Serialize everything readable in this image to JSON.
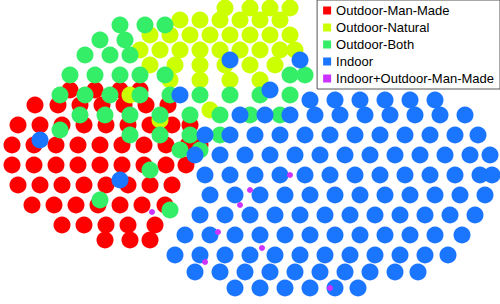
{
  "chart_data": {
    "type": "scatter",
    "tick_labels": false,
    "grid": false,
    "legend": "upper right",
    "marker": "circle",
    "series": [
      {
        "name": "Outdoor-Man-Made",
        "color": "#ff0000",
        "points": [
          [
            70,
            90
          ],
          [
            95,
            90
          ],
          [
            120,
            90
          ],
          [
            140,
            90
          ],
          [
            35,
            105
          ],
          [
            58,
            105
          ],
          [
            80,
            105
          ],
          [
            102,
            105
          ],
          [
            124,
            105
          ],
          [
            146,
            105
          ],
          [
            168,
            105
          ],
          [
            18,
            125
          ],
          [
            40,
            125
          ],
          [
            62,
            125
          ],
          [
            84,
            125
          ],
          [
            106,
            125
          ],
          [
            128,
            125
          ],
          [
            150,
            125
          ],
          [
            172,
            125
          ],
          [
            190,
            125
          ],
          [
            12,
            145
          ],
          [
            34,
            145
          ],
          [
            56,
            145
          ],
          [
            78,
            145
          ],
          [
            100,
            145
          ],
          [
            122,
            145
          ],
          [
            144,
            145
          ],
          [
            166,
            145
          ],
          [
            188,
            145
          ],
          [
            200,
            145
          ],
          [
            12,
            165
          ],
          [
            34,
            165
          ],
          [
            56,
            165
          ],
          [
            78,
            165
          ],
          [
            100,
            165
          ],
          [
            122,
            165
          ],
          [
            144,
            165
          ],
          [
            166,
            165
          ],
          [
            186,
            165
          ],
          [
            18,
            185
          ],
          [
            40,
            185
          ],
          [
            62,
            185
          ],
          [
            84,
            185
          ],
          [
            106,
            185
          ],
          [
            128,
            185
          ],
          [
            150,
            185
          ],
          [
            172,
            185
          ],
          [
            32,
            205
          ],
          [
            54,
            205
          ],
          [
            76,
            205
          ],
          [
            98,
            205
          ],
          [
            120,
            205
          ],
          [
            142,
            205
          ],
          [
            165,
            205
          ],
          [
            62,
            225
          ],
          [
            84,
            225
          ],
          [
            106,
            225
          ],
          [
            128,
            225
          ],
          [
            155,
            225
          ],
          [
            105,
            240
          ],
          [
            130,
            240
          ],
          [
            150,
            240
          ]
        ]
      },
      {
        "name": "Outdoor-Natural",
        "color": "#ccff00",
        "points": [
          [
            225,
            8
          ],
          [
            250,
            8
          ],
          [
            270,
            8
          ],
          [
            290,
            8
          ],
          [
            180,
            20
          ],
          [
            200,
            20
          ],
          [
            220,
            20
          ],
          [
            240,
            20
          ],
          [
            260,
            20
          ],
          [
            280,
            20
          ],
          [
            150,
            35
          ],
          [
            170,
            35
          ],
          [
            190,
            35
          ],
          [
            210,
            35
          ],
          [
            230,
            35
          ],
          [
            250,
            35
          ],
          [
            270,
            35
          ],
          [
            290,
            35
          ],
          [
            140,
            50
          ],
          [
            160,
            50
          ],
          [
            180,
            50
          ],
          [
            200,
            50
          ],
          [
            220,
            50
          ],
          [
            240,
            50
          ],
          [
            260,
            50
          ],
          [
            280,
            50
          ],
          [
            295,
            50
          ],
          [
            150,
            65
          ],
          [
            175,
            65
          ],
          [
            200,
            65
          ],
          [
            225,
            65
          ],
          [
            250,
            65
          ],
          [
            275,
            65
          ],
          [
            170,
            80
          ],
          [
            200,
            80
          ],
          [
            230,
            80
          ],
          [
            260,
            80
          ],
          [
            130,
            95
          ],
          [
            210,
            110
          ],
          [
            160,
            120
          ]
        ]
      },
      {
        "name": "Outdoor-Both",
        "color": "#33ee66",
        "points": [
          [
            120,
            25
          ],
          [
            145,
            25
          ],
          [
            165,
            25
          ],
          [
            100,
            40
          ],
          [
            125,
            40
          ],
          [
            85,
            55
          ],
          [
            110,
            55
          ],
          [
            130,
            55
          ],
          [
            70,
            75
          ],
          [
            95,
            75
          ],
          [
            120,
            75
          ],
          [
            140,
            75
          ],
          [
            165,
            75
          ],
          [
            290,
            75
          ],
          [
            305,
            75
          ],
          [
            60,
            95
          ],
          [
            85,
            95
          ],
          [
            110,
            95
          ],
          [
            140,
            95
          ],
          [
            170,
            95
          ],
          [
            200,
            95
          ],
          [
            230,
            95
          ],
          [
            260,
            95
          ],
          [
            290,
            95
          ],
          [
            80,
            115
          ],
          [
            105,
            115
          ],
          [
            130,
            115
          ],
          [
            160,
            115
          ],
          [
            190,
            115
          ],
          [
            220,
            115
          ],
          [
            250,
            115
          ],
          [
            280,
            115
          ],
          [
            130,
            135
          ],
          [
            160,
            135
          ],
          [
            190,
            135
          ],
          [
            220,
            135
          ],
          [
            180,
            150
          ],
          [
            200,
            150
          ],
          [
            60,
            130
          ],
          [
            150,
            170
          ],
          [
            100,
            200
          ],
          [
            170,
            210
          ]
        ]
      },
      {
        "name": "Indoor",
        "color": "#1a75ff",
        "points": [
          [
            310,
            100
          ],
          [
            335,
            100
          ],
          [
            360,
            100
          ],
          [
            385,
            100
          ],
          [
            410,
            100
          ],
          [
            435,
            100
          ],
          [
            240,
            115
          ],
          [
            265,
            115
          ],
          [
            290,
            115
          ],
          [
            315,
            115
          ],
          [
            340,
            115
          ],
          [
            365,
            115
          ],
          [
            390,
            115
          ],
          [
            415,
            115
          ],
          [
            440,
            115
          ],
          [
            465,
            115
          ],
          [
            205,
            135
          ],
          [
            230,
            135
          ],
          [
            255,
            135
          ],
          [
            280,
            135
          ],
          [
            305,
            135
          ],
          [
            330,
            135
          ],
          [
            355,
            135
          ],
          [
            380,
            135
          ],
          [
            405,
            135
          ],
          [
            430,
            135
          ],
          [
            455,
            135
          ],
          [
            478,
            135
          ],
          [
            195,
            155
          ],
          [
            220,
            155
          ],
          [
            245,
            155
          ],
          [
            270,
            155
          ],
          [
            295,
            155
          ],
          [
            320,
            155
          ],
          [
            345,
            155
          ],
          [
            370,
            155
          ],
          [
            395,
            155
          ],
          [
            420,
            155
          ],
          [
            445,
            155
          ],
          [
            470,
            155
          ],
          [
            490,
            155
          ],
          [
            205,
            175
          ],
          [
            230,
            175
          ],
          [
            255,
            175
          ],
          [
            280,
            175
          ],
          [
            305,
            175
          ],
          [
            330,
            175
          ],
          [
            355,
            175
          ],
          [
            380,
            175
          ],
          [
            405,
            175
          ],
          [
            430,
            175
          ],
          [
            455,
            175
          ],
          [
            480,
            175
          ],
          [
            492,
            175
          ],
          [
            210,
            195
          ],
          [
            235,
            195
          ],
          [
            260,
            195
          ],
          [
            285,
            195
          ],
          [
            310,
            195
          ],
          [
            335,
            195
          ],
          [
            360,
            195
          ],
          [
            385,
            195
          ],
          [
            410,
            195
          ],
          [
            435,
            195
          ],
          [
            460,
            195
          ],
          [
            485,
            195
          ],
          [
            200,
            215
          ],
          [
            225,
            215
          ],
          [
            250,
            215
          ],
          [
            275,
            215
          ],
          [
            300,
            215
          ],
          [
            325,
            215
          ],
          [
            350,
            215
          ],
          [
            375,
            215
          ],
          [
            400,
            215
          ],
          [
            425,
            215
          ],
          [
            450,
            215
          ],
          [
            475,
            215
          ],
          [
            185,
            235
          ],
          [
            210,
            235
          ],
          [
            235,
            235
          ],
          [
            260,
            235
          ],
          [
            285,
            235
          ],
          [
            310,
            235
          ],
          [
            335,
            235
          ],
          [
            360,
            235
          ],
          [
            385,
            235
          ],
          [
            410,
            235
          ],
          [
            435,
            235
          ],
          [
            462,
            235
          ],
          [
            175,
            255
          ],
          [
            200,
            255
          ],
          [
            225,
            255
          ],
          [
            250,
            255
          ],
          [
            275,
            255
          ],
          [
            300,
            255
          ],
          [
            325,
            255
          ],
          [
            350,
            255
          ],
          [
            375,
            255
          ],
          [
            400,
            255
          ],
          [
            425,
            255
          ],
          [
            448,
            255
          ],
          [
            195,
            272
          ],
          [
            220,
            272
          ],
          [
            245,
            272
          ],
          [
            270,
            272
          ],
          [
            295,
            272
          ],
          [
            320,
            272
          ],
          [
            345,
            272
          ],
          [
            370,
            272
          ],
          [
            395,
            272
          ],
          [
            418,
            272
          ],
          [
            235,
            288
          ],
          [
            260,
            288
          ],
          [
            285,
            288
          ],
          [
            310,
            288
          ],
          [
            335,
            288
          ],
          [
            358,
            288
          ],
          [
            230,
            60
          ],
          [
            270,
            90
          ],
          [
            180,
            95
          ],
          [
            300,
            60
          ],
          [
            40,
            140
          ],
          [
            120,
            180
          ]
        ]
      },
      {
        "name": "Indoor+Outdoor-Man-Made",
        "color": "#cc33ff",
        "points": [
          [
            240,
            205
          ],
          [
            262,
            248
          ],
          [
            218,
            232
          ],
          [
            330,
            288
          ],
          [
            152,
            212
          ],
          [
            205,
            262
          ],
          [
            290,
            175
          ],
          [
            250,
            190
          ]
        ]
      }
    ]
  }
}
